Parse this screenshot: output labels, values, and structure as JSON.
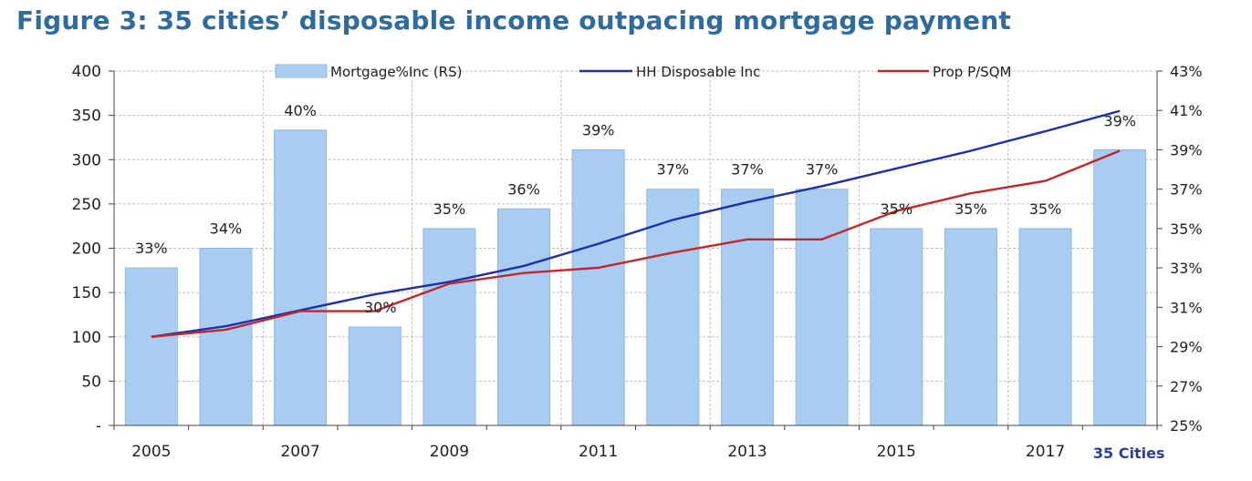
{
  "figure_title": "Figure 3: 35 cities’ disposable income outpacing mortgage payment",
  "chart_data": {
    "type": "bar",
    "categories": [
      "2005",
      "2006",
      "2007",
      "2008",
      "2009",
      "2010",
      "2011",
      "2012",
      "2013",
      "2014",
      "2015",
      "2016",
      "2017",
      "2018"
    ],
    "x_tick_labels": [
      "2005",
      "",
      "2007",
      "",
      "2009",
      "",
      "2011",
      "",
      "2013",
      "",
      "2015",
      "",
      "2017",
      ""
    ],
    "x_subtitle": "35 Cities",
    "left_axis": {
      "ylim": [
        0,
        400
      ],
      "ticks": [
        0,
        50,
        100,
        150,
        200,
        250,
        300,
        350,
        400
      ],
      "tick_labels": [
        "-",
        "50",
        "100",
        "150",
        "200",
        "250",
        "300",
        "350",
        "400"
      ]
    },
    "right_axis": {
      "ylim": [
        25,
        43
      ],
      "ticks": [
        25,
        27,
        29,
        31,
        33,
        35,
        37,
        39,
        41,
        43
      ],
      "tick_labels": [
        "25%",
        "27%",
        "29%",
        "31%",
        "33%",
        "35%",
        "37%",
        "39%",
        "41%",
        "43%"
      ]
    },
    "series": [
      {
        "name": "Mortgage%Inc (RS)",
        "type": "bar",
        "axis": "right",
        "values": [
          33.0,
          34.0,
          40.0,
          30.0,
          35.0,
          36.0,
          39.0,
          37.0,
          37.0,
          37.0,
          35.0,
          35.0,
          35.0,
          39.0
        ],
        "labels": [
          "33%",
          "34%",
          "40%",
          "30%",
          "35%",
          "36%",
          "39%",
          "37%",
          "37%",
          "37%",
          "35%",
          "35%",
          "35%",
          "39%"
        ],
        "color": "#a9cdf0",
        "edge_color": "#8fb8e0"
      },
      {
        "name": "HH Disposable Inc",
        "type": "line",
        "axis": "left",
        "values": [
          100,
          112,
          130,
          148,
          162,
          180,
          205,
          232,
          252,
          270,
          290,
          310,
          332,
          355
        ],
        "color": "#1f2fa8"
      },
      {
        "name": "Prop P/SQM",
        "type": "line",
        "axis": "left",
        "values": [
          100,
          108,
          129,
          129,
          160,
          172,
          178,
          195,
          210,
          210,
          242,
          262,
          276,
          310
        ],
        "color": "#c0282d"
      }
    ],
    "legend_position": "top",
    "grid": true
  }
}
